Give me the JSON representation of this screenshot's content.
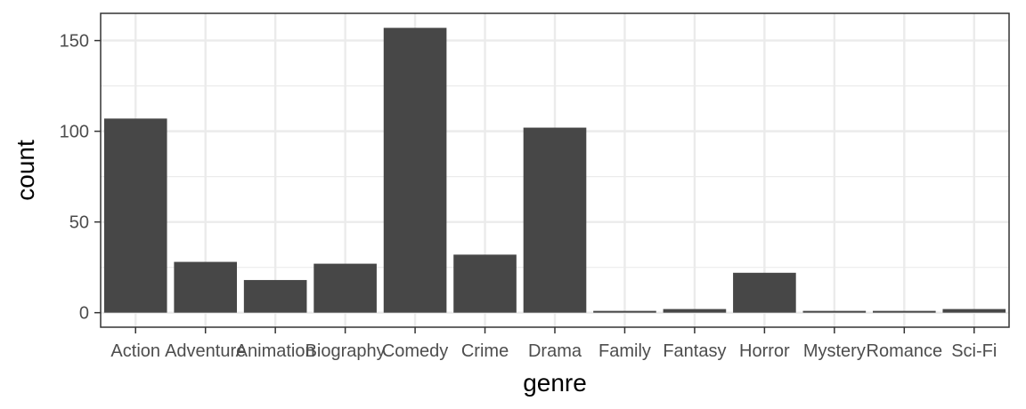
{
  "chart_data": {
    "type": "bar",
    "categories": [
      "Action",
      "Adventure",
      "Animation",
      "Biography",
      "Comedy",
      "Crime",
      "Drama",
      "Family",
      "Fantasy",
      "Horror",
      "Mystery",
      "Romance",
      "Sci-Fi"
    ],
    "values": [
      107,
      28,
      18,
      27,
      157,
      32,
      102,
      1,
      2,
      22,
      1,
      1,
      2
    ],
    "title": "",
    "xlabel": "genre",
    "ylabel": "count",
    "ylim": [
      -8,
      165
    ],
    "yticks": [
      0,
      50,
      100,
      150
    ],
    "grid": true,
    "bar_color": "#474747",
    "grid_color": "#ebebeb",
    "panel_border_color": "#333333"
  }
}
